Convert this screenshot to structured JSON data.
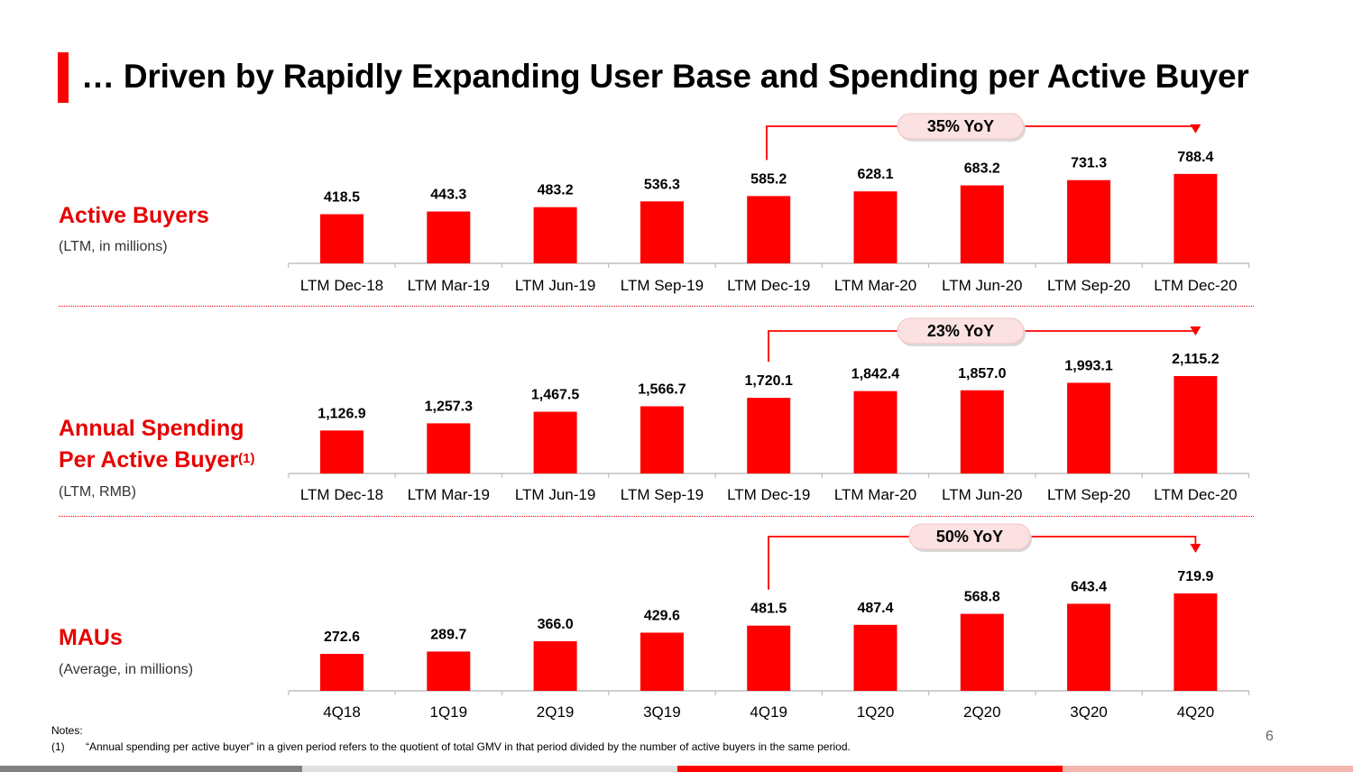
{
  "title": "… Driven by Rapidly Expanding User Base and Spending per Active Buyer",
  "sections": [
    {
      "title": "Active Buyers",
      "title_sup": "",
      "subtitle": "(LTM, in millions)"
    },
    {
      "title_line1": "Annual Spending",
      "title_line2": "Per Active Buyer",
      "title_sup": "(1)",
      "subtitle": "(LTM, RMB)"
    },
    {
      "title": "MAUs",
      "title_sup": "",
      "subtitle": "(Average, in millions)"
    }
  ],
  "chart_data": [
    {
      "type": "bar",
      "categories": [
        "LTM Dec-18",
        "LTM Mar-19",
        "LTM Jun-19",
        "LTM Sep-19",
        "LTM Dec-19",
        "LTM Mar-20",
        "LTM Jun-20",
        "LTM Sep-20",
        "LTM Dec-20"
      ],
      "values": [
        418.5,
        443.3,
        483.2,
        536.3,
        585.2,
        628.1,
        683.2,
        731.3,
        788.4
      ],
      "labels": [
        "418.5",
        "443.3",
        "483.2",
        "536.3",
        "585.2",
        "628.1",
        "683.2",
        "731.3",
        "788.4"
      ],
      "annotation": {
        "text": "35% YoY",
        "from_index": 4,
        "to_index": 8
      }
    },
    {
      "type": "bar",
      "categories": [
        "LTM Dec-18",
        "LTM Mar-19",
        "LTM Jun-19",
        "LTM Sep-19",
        "LTM Dec-19",
        "LTM Mar-20",
        "LTM Jun-20",
        "LTM Sep-20",
        "LTM Dec-20"
      ],
      "values": [
        1126.9,
        1257.3,
        1467.5,
        1566.7,
        1720.1,
        1842.4,
        1857.0,
        1993.1,
        2115.2
      ],
      "labels": [
        "1,126.9",
        "1,257.3",
        "1,467.5",
        "1,566.7",
        "1,720.1",
        "1,842.4",
        "1,857.0",
        "1,993.1",
        "2,115.2"
      ],
      "annotation": {
        "text": "23% YoY",
        "from_index": 4,
        "to_index": 8
      }
    },
    {
      "type": "bar",
      "categories": [
        "4Q18",
        "1Q19",
        "2Q19",
        "3Q19",
        "4Q19",
        "1Q20",
        "2Q20",
        "3Q20",
        "4Q20"
      ],
      "values": [
        272.6,
        289.7,
        366.0,
        429.6,
        481.5,
        487.4,
        568.8,
        643.4,
        719.9
      ],
      "labels": [
        "272.6",
        "289.7",
        "366.0",
        "429.6",
        "481.5",
        "487.4",
        "568.8",
        "643.4",
        "719.9"
      ],
      "annotation": {
        "text": "50% YoY",
        "from_index": 4,
        "to_index": 8
      }
    }
  ],
  "notes": {
    "heading": "Notes:",
    "marker": "(1)",
    "text": "“Annual spending per active buyer” in a given period refers to the quotient of total GMV in that period divided by the number of active buyers in the same period."
  },
  "page_number": "6",
  "colors": {
    "accent": "#ff0000",
    "bar": "#ff0000",
    "text_red": "#e60000",
    "footer_gray": "#808080",
    "footer_light": "#e0e0e0",
    "footer_pink": "#f4b5ad"
  }
}
